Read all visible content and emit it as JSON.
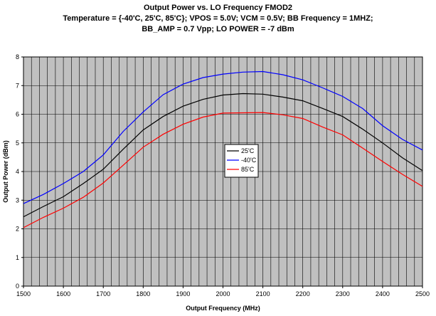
{
  "chart_data": {
    "type": "line",
    "title": "Output Power vs. LO Frequency FMOD2",
    "subtitle_line1": "Temperature = {-40'C, 25'C, 85'C}; VPOS = 5.0V; VCM = 0.5V; BB Frequency = 1MHZ;",
    "subtitle_line2": "BB_AMP = 0.7 Vpp; LO POWER = -7 dBm",
    "xlabel": "Output Frequency (MHz)",
    "ylabel": "Output Power (dBm)",
    "xlim": [
      1500,
      2500
    ],
    "ylim": [
      0,
      8
    ],
    "xticks": [
      1500,
      1600,
      1700,
      1800,
      1900,
      2000,
      2100,
      2200,
      2300,
      2400,
      2500
    ],
    "yticks": [
      0,
      1,
      2,
      3,
      4,
      5,
      6,
      7,
      8
    ],
    "grid": true,
    "legend_position": "center",
    "x": [
      1500,
      1550,
      1600,
      1650,
      1700,
      1750,
      1800,
      1850,
      1900,
      1950,
      2000,
      2050,
      2100,
      2150,
      2200,
      2250,
      2300,
      2350,
      2400,
      2450,
      2500
    ],
    "series": [
      {
        "name": "25'C",
        "color": "#000000",
        "values": [
          2.42,
          2.78,
          3.12,
          3.58,
          4.08,
          4.78,
          5.45,
          5.92,
          6.28,
          6.52,
          6.67,
          6.72,
          6.7,
          6.6,
          6.47,
          6.2,
          5.92,
          5.48,
          5.0,
          4.48,
          4.03
        ]
      },
      {
        "name": "-40'C",
        "color": "#0000ff",
        "values": [
          2.88,
          3.2,
          3.58,
          4.0,
          4.58,
          5.4,
          6.08,
          6.68,
          7.05,
          7.28,
          7.4,
          7.47,
          7.49,
          7.38,
          7.2,
          6.92,
          6.62,
          6.2,
          5.6,
          5.12,
          4.75
        ]
      },
      {
        "name": "85'C",
        "color": "#ff0000",
        "values": [
          2.04,
          2.4,
          2.72,
          3.1,
          3.6,
          4.22,
          4.85,
          5.3,
          5.65,
          5.9,
          6.04,
          6.05,
          6.06,
          5.98,
          5.85,
          5.55,
          5.28,
          4.82,
          4.35,
          3.9,
          3.48
        ]
      }
    ]
  }
}
